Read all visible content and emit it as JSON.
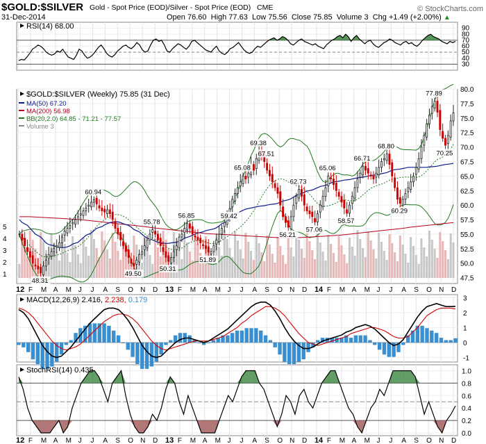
{
  "header": {
    "symbol": "$GOLD:$SILVER",
    "description": "Gold - Spot Price (EOD)/Silver - Spot Price (EOD)",
    "exchange": "CME",
    "date": "31-Dec-2014",
    "watermark": "© StockCharts.com",
    "quote": {
      "open": "Open 76.60",
      "high": "High 77.63",
      "low": "Low 75.56",
      "close": "Close 75.85",
      "volume": "Volume 3",
      "change": "Chg +1.49 (+2.00%)",
      "change_arrow": "▲"
    }
  },
  "colors": {
    "green_fill": "#2e7d32",
    "red_fill": "#a56060",
    "ma50": "#0a1a8c",
    "ma200": "#b3001b",
    "bb": "#1f7a1f",
    "macd_hist": "#3a8fd0",
    "volume_up": "#c8c8c8",
    "volume_down": "#e7b8b8",
    "candle_up": "#222222",
    "candle_down": "#cc0000"
  },
  "x_axis": {
    "labels": [
      "12",
      "F",
      "M",
      "A",
      "M",
      "J",
      "J",
      "A",
      "S",
      "O",
      "N",
      "D",
      "13",
      "F",
      "M",
      "A",
      "M",
      "J",
      "J",
      "A",
      "S",
      "O",
      "N",
      "D",
      "14",
      "F",
      "M",
      "A",
      "M",
      "J",
      "J",
      "A",
      "S",
      "O",
      "N",
      "D"
    ],
    "bold_labels": [
      "12",
      "13",
      "14"
    ]
  },
  "chart_data": [
    {
      "type": "line",
      "name": "RSI panel",
      "legend": "RSI(14) 68.00",
      "ylim": [
        20,
        100
      ],
      "ticks": [
        "90",
        "80",
        "70",
        "60",
        "50",
        "40",
        "30"
      ],
      "levels": [
        70,
        50,
        30
      ],
      "series": [
        {
          "name": "RSI(14)",
          "values": [
            36,
            38,
            37,
            42,
            48,
            55,
            58,
            62,
            60,
            56,
            50,
            47,
            45,
            47,
            52,
            50,
            55,
            48,
            42,
            40,
            38,
            45,
            55,
            52,
            45,
            40,
            42,
            46,
            52,
            58,
            62,
            56,
            48,
            44,
            42,
            46,
            52,
            56,
            60,
            62,
            58,
            56,
            60,
            66,
            62,
            54,
            50,
            52,
            62,
            70,
            72,
            68,
            70,
            62,
            52,
            50,
            56,
            60,
            64,
            62,
            58,
            55,
            60,
            68,
            70,
            66,
            62,
            58,
            54,
            52,
            50,
            56,
            60,
            52,
            48,
            46,
            50,
            56,
            58,
            62,
            66,
            60,
            54,
            50,
            48,
            50,
            56,
            60,
            58,
            62,
            66,
            70,
            72,
            74,
            70,
            72,
            76,
            74,
            70,
            64,
            62,
            66,
            70,
            72,
            68,
            66,
            64,
            62,
            64,
            60,
            58,
            56,
            62,
            66,
            70,
            72,
            76,
            78,
            74,
            80,
            76,
            68,
            74,
            78,
            72,
            68,
            64,
            68,
            70,
            64,
            60,
            58,
            62,
            66,
            68,
            72,
            70,
            66,
            64,
            62,
            66,
            68,
            64,
            66,
            62,
            60,
            64,
            70,
            74,
            78,
            80,
            76,
            74,
            72,
            68,
            66,
            64,
            68,
            66,
            68
          ]
        }
      ]
    },
    {
      "type": "candlestick",
      "name": "Price panel",
      "title": "$GOLD:$SILVER (Weekly) 75.85 (31 Dec)",
      "ylim": [
        46.5,
        80.0
      ],
      "ticks": [
        "80.0",
        "77.5",
        "75.0",
        "72.5",
        "70.0",
        "67.5",
        "65.0",
        "62.5",
        "60.0",
        "57.5",
        "55.0",
        "52.5",
        "50.0",
        "47.5"
      ],
      "volume_ticks": [
        "5",
        "4",
        "3",
        "2",
        "1"
      ],
      "legend": [
        {
          "label": "MA(50) 67.20",
          "color": "#0a1a8c"
        },
        {
          "label": "MA(200) 56.98",
          "color": "#b3001b"
        },
        {
          "label": "BB(20,2.0) 64.85 - 71.21 - 77.57",
          "color": "#1f7a1f"
        },
        {
          "label": "Volume 3",
          "color": "#888888"
        }
      ],
      "close": [
        55.0,
        54.0,
        53.0,
        52.0,
        51.0,
        50.0,
        49.5,
        49.0,
        48.3,
        49.5,
        50.5,
        51.5,
        52.0,
        52.5,
        53.0,
        53.5,
        54.5,
        55.5,
        56.0,
        56.5,
        57.0,
        57.5,
        58.0,
        58.5,
        59.0,
        59.5,
        60.0,
        60.5,
        60.9,
        60.2,
        59.5,
        59.0,
        58.8,
        59.2,
        58.5,
        57.5,
        56.0,
        55.0,
        54.0,
        53.0,
        52.0,
        51.0,
        50.0,
        49.5,
        50.5,
        51.5,
        52.0,
        53.0,
        54.0,
        55.0,
        55.8,
        55.0,
        54.0,
        53.0,
        52.0,
        51.0,
        50.3,
        51.0,
        52.0,
        53.0,
        54.5,
        55.0,
        56.0,
        56.8,
        56.0,
        55.0,
        54.5,
        54.0,
        53.5,
        53.0,
        52.5,
        51.9,
        52.0,
        53.0,
        54.0,
        55.0,
        56.0,
        57.0,
        58.0,
        59.4,
        61.0,
        62.0,
        63.0,
        64.0,
        65.0,
        64.5,
        65.5,
        67.0,
        66.0,
        68.0,
        69.4,
        68.5,
        67.5,
        66.0,
        65.0,
        64.0,
        63.0,
        62.0,
        60.0,
        58.0,
        57.0,
        56.2,
        58.0,
        60.0,
        61.5,
        62.7,
        61.5,
        60.0,
        59.0,
        58.5,
        58.0,
        57.1,
        58.5,
        60.0,
        61.5,
        63.0,
        65.0,
        64.5,
        63.5,
        62.5,
        61.5,
        60.5,
        59.5,
        58.6,
        60.0,
        61.5,
        63.0,
        64.5,
        65.5,
        66.7,
        66.0,
        65.5,
        65.0,
        64.5,
        65.5,
        66.5,
        67.5,
        68.0,
        68.8,
        67.0,
        65.0,
        63.0,
        61.0,
        60.3,
        61.0,
        62.0,
        63.0,
        64.0,
        65.0,
        66.5,
        68.0,
        70.0,
        72.0,
        74.0,
        75.5,
        77.0,
        77.9,
        76.0,
        73.0,
        71.5,
        70.3,
        72.0,
        74.5,
        75.9
      ],
      "ma50": [
        57.5,
        57.0,
        56.5,
        56.0,
        55.5,
        55.0,
        54.5,
        54.0,
        53.5,
        53.2,
        53.0,
        52.8,
        52.7,
        52.7,
        52.8,
        53.0,
        53.3,
        53.6,
        54.0,
        54.4,
        54.8,
        55.2,
        55.6,
        56.0,
        56.3,
        56.6,
        56.8,
        57.0,
        57.1,
        57.1,
        57.0,
        56.8,
        56.5,
        56.2,
        55.8,
        55.4,
        55.0,
        54.6,
        54.3,
        54.0,
        53.8,
        53.6,
        53.5,
        53.4,
        53.4,
        53.5,
        53.6,
        53.8,
        54.0,
        54.3,
        54.6,
        54.8,
        55.0,
        55.2,
        55.4,
        55.6,
        55.7,
        55.9,
        56.1,
        56.4,
        56.8,
        57.2,
        57.7,
        58.2,
        58.6,
        58.9,
        59.1,
        59.3,
        59.5,
        59.6,
        59.7,
        59.8,
        59.9,
        60.0,
        60.1,
        60.2,
        60.3,
        60.5,
        60.7,
        60.9,
        61.1,
        61.4,
        61.7,
        62.0,
        62.2,
        62.4,
        62.6,
        62.8,
        63.0,
        63.2,
        63.4,
        63.6,
        63.8,
        64.0,
        64.1,
        64.2,
        64.3,
        64.4,
        64.5,
        64.6,
        64.7,
        64.8,
        64.9,
        65.0,
        65.1,
        65.2,
        65.3,
        65.4,
        65.6,
        65.8,
        66.0,
        66.1,
        66.2,
        66.3,
        66.4,
        66.5,
        66.5,
        66.5,
        66.5,
        66.5,
        66.5,
        66.6,
        66.6,
        66.7,
        66.8,
        66.9,
        67.0,
        67.1,
        67.2
      ],
      "ma200": [
        58.0,
        58.0,
        57.9,
        57.8,
        57.7,
        57.6,
        57.5,
        57.3,
        57.1,
        56.9,
        56.7,
        56.5,
        56.3,
        56.1,
        55.9,
        55.7,
        55.5,
        55.3,
        55.1,
        55.0,
        54.9,
        54.8,
        54.7,
        54.6,
        54.5,
        54.4,
        54.4,
        54.4,
        54.5,
        54.6,
        54.7,
        54.8,
        55.0,
        55.2,
        55.4,
        55.6,
        55.8,
        56.0,
        56.2,
        56.4,
        56.6,
        56.8,
        56.98
      ],
      "labels": [
        {
          "text": "60.94",
          "x_index": 28,
          "value": 60.94,
          "pos": "above"
        },
        {
          "text": "55.78",
          "x_index": 50,
          "value": 55.78,
          "pos": "above"
        },
        {
          "text": "56.85",
          "x_index": 63,
          "value": 56.85,
          "pos": "above"
        },
        {
          "text": "48.31",
          "x_index": 8,
          "value": 48.31,
          "pos": "below"
        },
        {
          "text": "49.50",
          "x_index": 43,
          "value": 49.5,
          "pos": "below"
        },
        {
          "text": "50.31",
          "x_index": 56,
          "value": 50.31,
          "pos": "below"
        },
        {
          "text": "51.89",
          "x_index": 71,
          "value": 51.89,
          "pos": "below"
        },
        {
          "text": "59.42",
          "x_index": 79,
          "value": 59.42,
          "pos": "below"
        },
        {
          "text": "65.08",
          "x_index": 84,
          "value": 65.08,
          "pos": "above"
        },
        {
          "text": "69.38",
          "x_index": 90,
          "value": 69.38,
          "pos": "above"
        },
        {
          "text": "67.51",
          "x_index": 93,
          "value": 67.51,
          "pos": "above"
        },
        {
          "text": "56.21",
          "x_index": 101,
          "value": 56.21,
          "pos": "below"
        },
        {
          "text": "62.73",
          "x_index": 105,
          "value": 62.73,
          "pos": "above"
        },
        {
          "text": "57.06",
          "x_index": 111,
          "value": 57.06,
          "pos": "below"
        },
        {
          "text": "65.06",
          "x_index": 116,
          "value": 65.06,
          "pos": "above"
        },
        {
          "text": "58.57",
          "x_index": 123,
          "value": 58.57,
          "pos": "below"
        },
        {
          "text": "66.71",
          "x_index": 129,
          "value": 66.71,
          "pos": "above"
        },
        {
          "text": "68.80",
          "x_index": 138,
          "value": 68.8,
          "pos": "above"
        },
        {
          "text": "60.29",
          "x_index": 143,
          "value": 60.29,
          "pos": "below"
        },
        {
          "text": "77.89",
          "x_index": 156,
          "value": 77.89,
          "pos": "above"
        },
        {
          "text": "70.25",
          "x_index": 160,
          "value": 70.25,
          "pos": "below"
        }
      ]
    },
    {
      "type": "line",
      "name": "MACD panel",
      "legend": {
        "prefix": "MACD(12,26,9)",
        "macd": "2.416",
        "signal": "2.238",
        "hist": "0.179"
      },
      "ylim": [
        -1.3,
        3.2
      ],
      "ticks": [
        "3",
        "2",
        "1",
        "0",
        "-1"
      ],
      "macd": [
        2.2,
        2.0,
        1.6,
        1.0,
        0.4,
        -0.2,
        -0.6,
        -0.9,
        -1.0,
        -0.9,
        -0.6,
        -0.3,
        0.1,
        0.5,
        0.9,
        1.3,
        1.6,
        1.9,
        2.2,
        2.3,
        2.3,
        2.2,
        1.9,
        1.5,
        1.0,
        0.4,
        -0.2,
        -0.6,
        -0.9,
        -1.0,
        -0.9,
        -0.6,
        -0.3,
        0.0,
        0.2,
        0.3,
        0.3,
        0.2,
        0.1,
        0.0,
        0.1,
        0.3,
        0.5,
        0.7,
        0.9,
        1.2,
        1.5,
        1.8,
        2.1,
        2.4,
        2.6,
        2.7,
        2.7,
        2.5,
        2.1,
        1.6,
        1.0,
        0.5,
        0.1,
        -0.2,
        -0.4,
        -0.4,
        -0.3,
        -0.1,
        0.1,
        0.2,
        0.3,
        0.4,
        0.5,
        0.7,
        0.8,
        1.0,
        1.1,
        1.2,
        1.1,
        0.9,
        0.6,
        0.3,
        0.0,
        -0.2,
        -0.1,
        0.2,
        0.7,
        1.2,
        1.7,
        2.1,
        2.4,
        2.5,
        2.6,
        2.5,
        2.4,
        2.4,
        2.416
      ],
      "signal": [
        2.3,
        2.2,
        2.0,
        1.7,
        1.3,
        0.9,
        0.5,
        0.1,
        -0.2,
        -0.4,
        -0.5,
        -0.4,
        -0.3,
        -0.1,
        0.2,
        0.5,
        0.8,
        1.1,
        1.4,
        1.6,
        1.8,
        1.9,
        1.9,
        1.8,
        1.6,
        1.3,
        0.9,
        0.5,
        0.1,
        -0.2,
        -0.4,
        -0.5,
        -0.4,
        -0.3,
        -0.2,
        -0.1,
        0.0,
        0.1,
        0.1,
        0.1,
        0.1,
        0.2,
        0.3,
        0.4,
        0.6,
        0.8,
        1.0,
        1.3,
        1.5,
        1.8,
        2.0,
        2.2,
        2.4,
        2.4,
        2.3,
        2.1,
        1.8,
        1.4,
        1.0,
        0.6,
        0.3,
        0.0,
        -0.1,
        -0.2,
        -0.1,
        0.0,
        0.1,
        0.2,
        0.3,
        0.4,
        0.6,
        0.7,
        0.8,
        0.9,
        1.0,
        1.0,
        0.9,
        0.8,
        0.6,
        0.4,
        0.3,
        0.3,
        0.4,
        0.7,
        1.0,
        1.4,
        1.8,
        2.0,
        2.2,
        2.3,
        2.3,
        2.3,
        2.238
      ]
    },
    {
      "type": "line",
      "name": "StochRSI panel",
      "legend": "StochRSI(14) 0.435",
      "ylim": [
        0,
        1.05
      ],
      "ticks": [
        "1.0",
        "0.8",
        "0.6",
        "0.4",
        "0.2",
        "0.0"
      ],
      "levels": [
        0.8,
        0.2
      ],
      "values": [
        0.9,
        0.7,
        0.4,
        0.2,
        0.1,
        0.0,
        0.0,
        0.0,
        0.1,
        0.2,
        0.0,
        0.1,
        0.4,
        0.6,
        0.8,
        0.9,
        1.0,
        1.0,
        0.9,
        0.7,
        0.5,
        0.8,
        0.9,
        1.0,
        0.6,
        0.3,
        0.1,
        0.0,
        0.0,
        0.1,
        0.3,
        0.2,
        0.4,
        0.7,
        0.9,
        0.8,
        0.5,
        0.3,
        0.6,
        0.4,
        0.2,
        0.0,
        0.0,
        0.0,
        0.0,
        0.2,
        0.4,
        0.6,
        0.5,
        0.7,
        0.9,
        1.0,
        1.0,
        1.0,
        0.8,
        0.7,
        0.5,
        0.3,
        0.1,
        0.3,
        0.6,
        0.5,
        0.3,
        0.6,
        0.7,
        0.5,
        0.4,
        0.6,
        0.8,
        0.9,
        1.0,
        1.0,
        0.8,
        0.6,
        0.4,
        0.3,
        0.1,
        0.0,
        0.2,
        0.4,
        0.5,
        0.7,
        0.6,
        0.8,
        1.0,
        1.0,
        1.0,
        1.0,
        1.0,
        0.9,
        0.6,
        0.3,
        0.5,
        0.3,
        0.1,
        0.0,
        0.2,
        0.3,
        0.435
      ]
    }
  ]
}
